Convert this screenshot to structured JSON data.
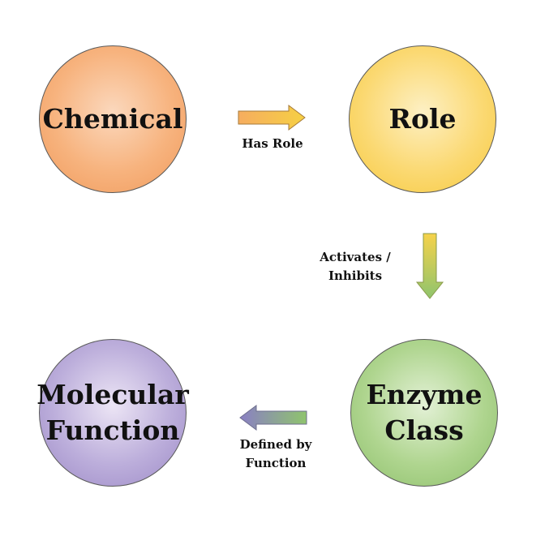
{
  "nodes": {
    "chemical": {
      "label": "Chemical"
    },
    "role": {
      "label": "Role"
    },
    "enzyme_class": {
      "label": "Enzyme\nClass"
    },
    "molecular_function": {
      "label": "Molecular\nFunction"
    }
  },
  "edges": {
    "has_role": {
      "label": "Has Role"
    },
    "activates_inhibits": {
      "label": "Activates /\nInhibits"
    },
    "defined_by_function": {
      "label": "Defined by\nFunction"
    }
  },
  "colors": {
    "chemical": "#f7b37e",
    "role": "#fbd973",
    "enzyme_class": "#afd58f",
    "molecular_function": "#bcaedb"
  }
}
